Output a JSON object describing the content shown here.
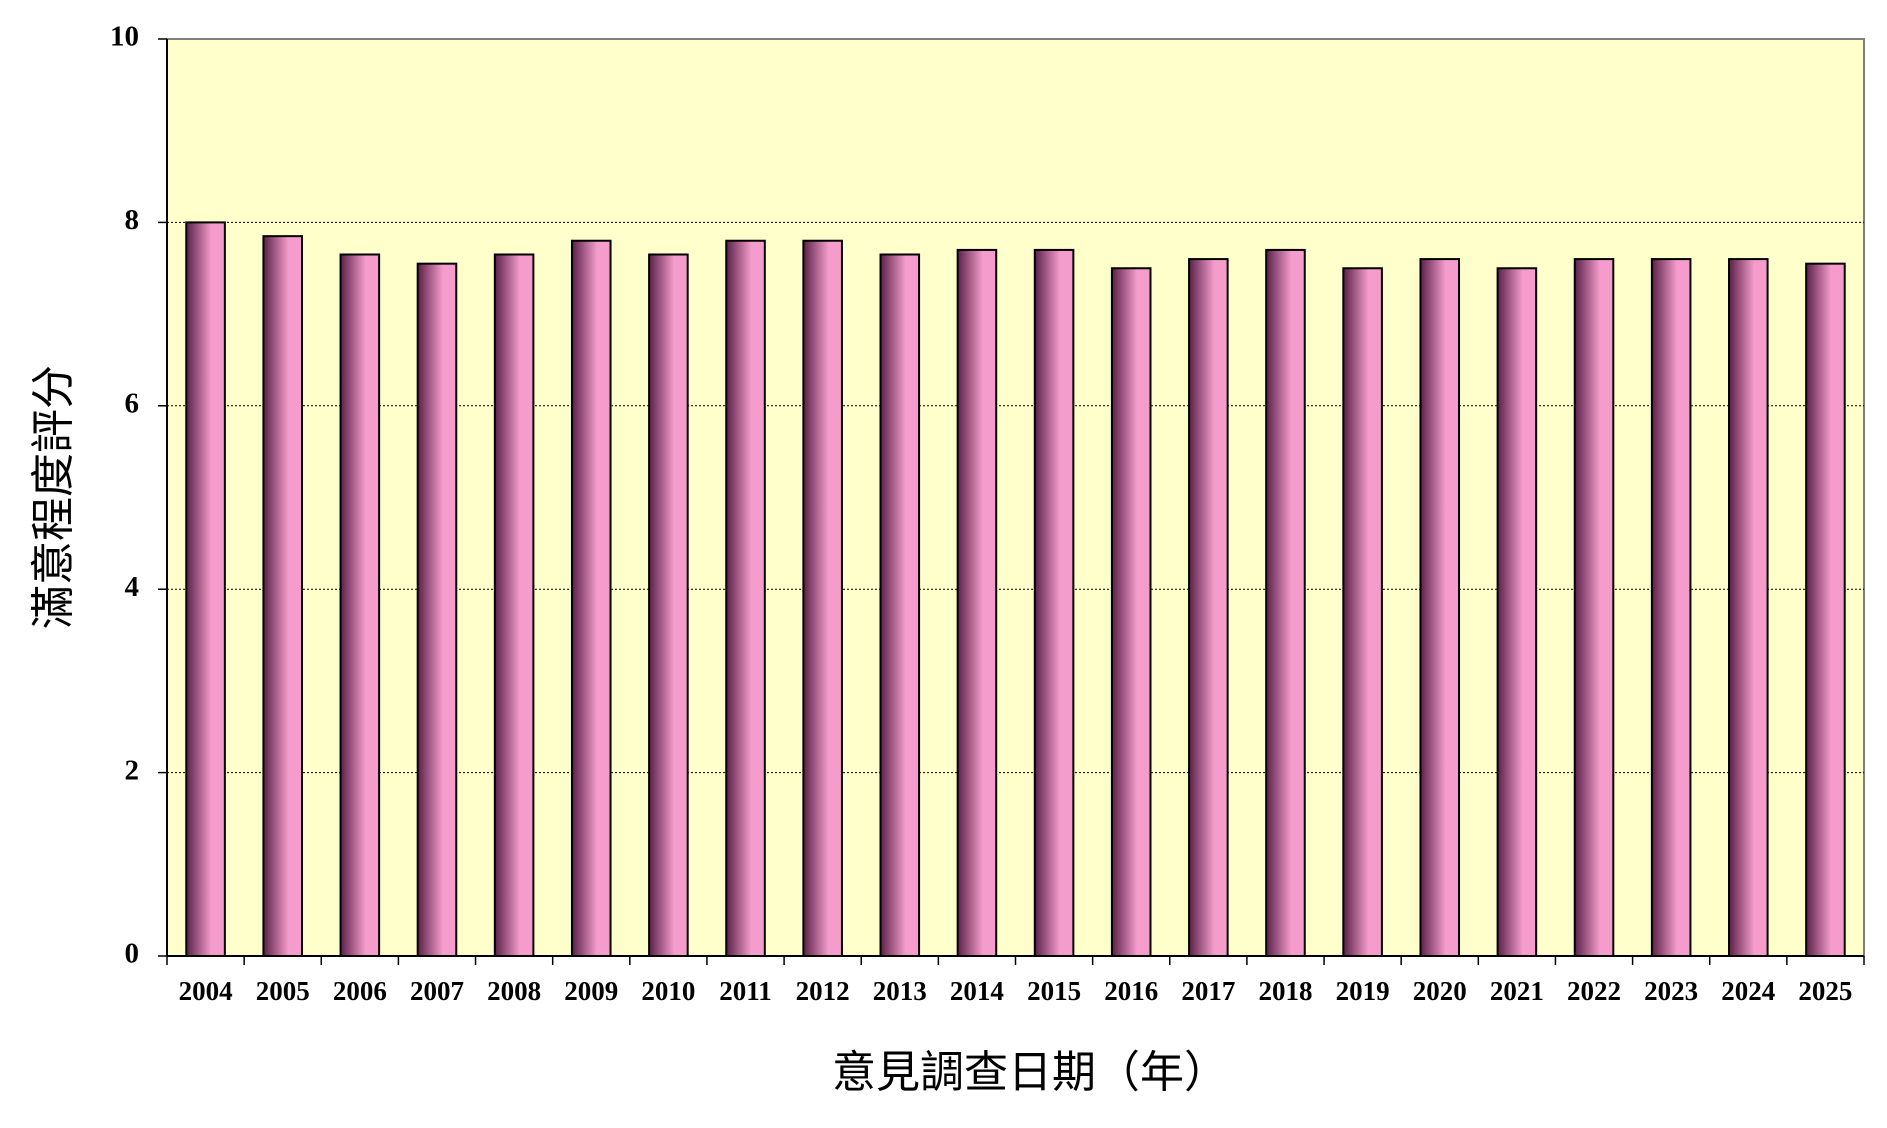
{
  "chart_data": {
    "type": "bar",
    "y_label": "滿意程度評分",
    "x_label": "意見調查日期（年）",
    "categories": [
      "2004",
      "2005",
      "2006",
      "2007",
      "2008",
      "2009",
      "2010",
      "2011",
      "2012",
      "2013",
      "2014",
      "2015",
      "2016",
      "2017",
      "2018",
      "2019",
      "2020",
      "2021",
      "2022",
      "2023",
      "2024",
      "2025"
    ],
    "values": [
      8.0,
      7.85,
      7.65,
      7.55,
      7.65,
      7.8,
      7.65,
      7.8,
      7.8,
      7.65,
      7.7,
      7.7,
      7.5,
      7.6,
      7.7,
      7.5,
      7.6,
      7.5,
      7.6,
      7.6,
      7.6,
      7.55
    ],
    "color": "#f49ccb",
    "ylim": [
      0,
      10
    ],
    "yticks": [
      0,
      2,
      4,
      6,
      8,
      10
    ],
    "grid": true
  }
}
